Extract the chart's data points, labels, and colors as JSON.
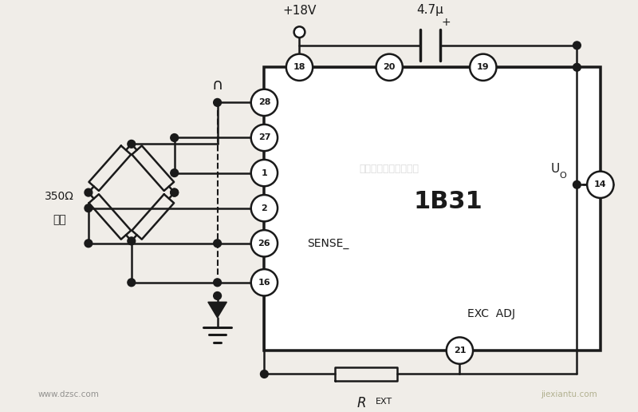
{
  "bg_color": "#f0ede8",
  "line_color": "#1a1a1a",
  "lw": 1.8,
  "title": "1B31",
  "watermark": "杭州将泰科技有限公司",
  "label_sense": "SENSE_",
  "label_excadj": "EXC  ADJ",
  "label_18v": "+18V",
  "label_47u": "4.7μ",
  "label_350a": "350Ω",
  "label_350b": "电桥",
  "footer_left": "www.dzsc.com",
  "footer_right": "jiexiantu.com"
}
